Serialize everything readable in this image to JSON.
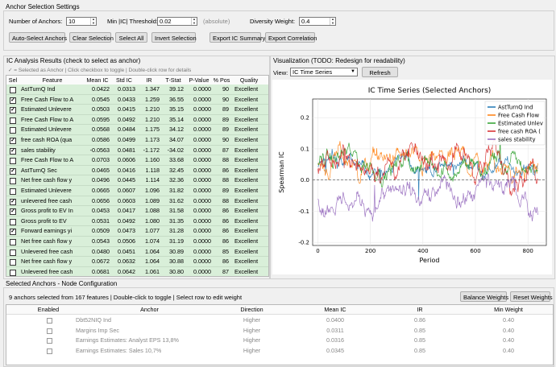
{
  "settings": {
    "title": "Anchor Selection Settings",
    "num_anchors_label": "Number of Anchors:",
    "num_anchors_value": "10",
    "min_ic_label": "Min |IC| Threshold:",
    "min_ic_value": "0.02",
    "min_ic_hint": "(absolute)",
    "diversity_label": "Diversity Weight:",
    "diversity_value": "0.4",
    "buttons": {
      "auto_select": "Auto-Select Anchors",
      "clear": "Clear Selection",
      "select_all": "Select All",
      "invert": "Invert Selection",
      "export_ic": "Export IC Summary",
      "export_corr": "Export Correlation"
    }
  },
  "ic_analysis": {
    "title": "IC Analysis Results (check to select as anchor)",
    "hint": "✓ = Selected as Anchor | Click checkbox to toggle | Double-click row for details",
    "columns": [
      "Sel",
      "Feature",
      "Mean IC",
      "Std IC",
      "IR",
      "T-Stat",
      "P-Value",
      "% Pos",
      "Quality"
    ],
    "rows": [
      {
        "sel": false,
        "feature": "AstTurnQ Ind",
        "mean_ic": "0.0422",
        "std_ic": "0.0313",
        "ir": "1.347",
        "t_stat": "39.12",
        "p_value": "0.0000",
        "pos": "90",
        "quality": "Excellent"
      },
      {
        "sel": true,
        "feature": "Free Cash Flow to A",
        "mean_ic": "0.0545",
        "std_ic": "0.0433",
        "ir": "1.259",
        "t_stat": "36.55",
        "p_value": "0.0000",
        "pos": "90",
        "quality": "Excellent"
      },
      {
        "sel": true,
        "feature": "Estimated Unlevere",
        "mean_ic": "0.0503",
        "std_ic": "0.0415",
        "ir": "1.210",
        "t_stat": "35.15",
        "p_value": "0.0000",
        "pos": "89",
        "quality": "Excellent"
      },
      {
        "sel": false,
        "feature": "Free Cash Flow to A",
        "mean_ic": "0.0595",
        "std_ic": "0.0492",
        "ir": "1.210",
        "t_stat": "35.14",
        "p_value": "0.0000",
        "pos": "89",
        "quality": "Excellent"
      },
      {
        "sel": false,
        "feature": "Estimated Unlevere",
        "mean_ic": "0.0568",
        "std_ic": "0.0484",
        "ir": "1.175",
        "t_stat": "34.12",
        "p_value": "0.0000",
        "pos": "89",
        "quality": "Excellent"
      },
      {
        "sel": true,
        "feature": "free cash ROA (qua",
        "mean_ic": "0.0586",
        "std_ic": "0.0499",
        "ir": "1.173",
        "t_stat": "34.07",
        "p_value": "0.0000",
        "pos": "90",
        "quality": "Excellent"
      },
      {
        "sel": true,
        "feature": "sales stability",
        "mean_ic": "-0.0563",
        "std_ic": "0.0481",
        "ir": "-1.172",
        "t_stat": "-34.02",
        "p_value": "0.0000",
        "pos": "87",
        "quality": "Excellent"
      },
      {
        "sel": false,
        "feature": "Free Cash Flow to A",
        "mean_ic": "0.0703",
        "std_ic": "0.0606",
        "ir": "1.160",
        "t_stat": "33.68",
        "p_value": "0.0000",
        "pos": "88",
        "quality": "Excellent"
      },
      {
        "sel": true,
        "feature": "AstTurnQ Sec",
        "mean_ic": "0.0465",
        "std_ic": "0.0416",
        "ir": "1.118",
        "t_stat": "32.45",
        "p_value": "0.0000",
        "pos": "86",
        "quality": "Excellent"
      },
      {
        "sel": false,
        "feature": "Net free cash flow y",
        "mean_ic": "0.0496",
        "std_ic": "0.0445",
        "ir": "1.114",
        "t_stat": "32.36",
        "p_value": "0.0000",
        "pos": "88",
        "quality": "Excellent"
      },
      {
        "sel": false,
        "feature": "Estimated Unlevere",
        "mean_ic": "0.0665",
        "std_ic": "0.0607",
        "ir": "1.096",
        "t_stat": "31.82",
        "p_value": "0.0000",
        "pos": "89",
        "quality": "Excellent"
      },
      {
        "sel": true,
        "feature": "unlevered free cash",
        "mean_ic": "0.0656",
        "std_ic": "0.0603",
        "ir": "1.089",
        "t_stat": "31.62",
        "p_value": "0.0000",
        "pos": "88",
        "quality": "Excellent"
      },
      {
        "sel": true,
        "feature": "Gross profit to EV In",
        "mean_ic": "0.0453",
        "std_ic": "0.0417",
        "ir": "1.088",
        "t_stat": "31.58",
        "p_value": "0.0000",
        "pos": "86",
        "quality": "Excellent"
      },
      {
        "sel": false,
        "feature": "Gross profit to EV",
        "mean_ic": "0.0531",
        "std_ic": "0.0492",
        "ir": "1.080",
        "t_stat": "31.35",
        "p_value": "0.0000",
        "pos": "86",
        "quality": "Excellent"
      },
      {
        "sel": true,
        "feature": "Forward earnings yi",
        "mean_ic": "0.0509",
        "std_ic": "0.0473",
        "ir": "1.077",
        "t_stat": "31.28",
        "p_value": "0.0000",
        "pos": "86",
        "quality": "Excellent"
      },
      {
        "sel": false,
        "feature": "Net free cash flow y",
        "mean_ic": "0.0543",
        "std_ic": "0.0506",
        "ir": "1.074",
        "t_stat": "31.19",
        "p_value": "0.0000",
        "pos": "86",
        "quality": "Excellent"
      },
      {
        "sel": false,
        "feature": "Unlevered free cash",
        "mean_ic": "0.0480",
        "std_ic": "0.0451",
        "ir": "1.064",
        "t_stat": "30.89",
        "p_value": "0.0000",
        "pos": "85",
        "quality": "Excellent"
      },
      {
        "sel": false,
        "feature": "Net free cash flow y",
        "mean_ic": "0.0672",
        "std_ic": "0.0632",
        "ir": "1.064",
        "t_stat": "30.88",
        "p_value": "0.0000",
        "pos": "86",
        "quality": "Excellent"
      },
      {
        "sel": false,
        "feature": "Unlevered free cash",
        "mean_ic": "0.0681",
        "std_ic": "0.0642",
        "ir": "1.061",
        "t_stat": "30.80",
        "p_value": "0.0000",
        "pos": "87",
        "quality": "Excellent"
      }
    ]
  },
  "visualization": {
    "title": "Visualization (TODO: Redesign for readability)",
    "view_label": "View:",
    "view_value": "IC Time Series",
    "refresh_label": "Refresh"
  },
  "chart_data": {
    "type": "line",
    "title": "IC Time Series (Selected Anchors)",
    "xlabel": "Period",
    "ylabel": "Spearman IC",
    "xlim": [
      -20,
      870
    ],
    "ylim": [
      -0.21,
      0.26
    ],
    "xticks": [
      "0",
      "200",
      "400",
      "600",
      "800"
    ],
    "yticks": [
      "-0.2",
      "-0.1",
      "0.0",
      "0.1",
      "0.2"
    ],
    "grid": true,
    "legend_position": "top-right",
    "zero_line": true,
    "series": [
      {
        "name": "AstTurnQ Ind",
        "color": "#1f77b4",
        "mean": 0.042,
        "amp": 0.028
      },
      {
        "name": "Free Cash Flow",
        "color": "#ff7f0e",
        "mean": 0.054,
        "amp": 0.04
      },
      {
        "name": "Estimated Unlev",
        "color": "#2ca02c",
        "mean": 0.05,
        "amp": 0.038
      },
      {
        "name": "free cash ROA (",
        "color": "#d62728",
        "mean": 0.058,
        "amp": 0.045
      },
      {
        "name": "sales stability",
        "color": "#9467bd",
        "mean": -0.056,
        "amp": 0.045
      }
    ],
    "n_points": 840
  },
  "anchors": {
    "title": "Selected Anchors - Node Configuration",
    "summary": "9 anchors selected from 167 features | Double-click to toggle | Select row to edit weight",
    "balance_label": "Balance Weights",
    "reset_label": "Reset Weights",
    "columns": [
      "Enabled",
      "Anchor",
      "Direction",
      "Mean IC",
      "IR",
      "Min Weight"
    ],
    "rows": [
      {
        "anchor": "Dbt52NIQ Ind",
        "direction": "Higher",
        "mean_ic": "0.0400",
        "ir": "0.86",
        "min_weight": "0.40"
      },
      {
        "anchor": "Margins Imp Sec",
        "direction": "Higher",
        "mean_ic": "0.0311",
        "ir": "0.85",
        "min_weight": "0.40"
      },
      {
        "anchor": "Earnings Estimates: Analyst EPS 13,8%",
        "direction": "Higher",
        "mean_ic": "0.0316",
        "ir": "0.85",
        "min_weight": "0.40"
      },
      {
        "anchor": "Earnings Estimates: Sales 10,7%",
        "direction": "Higher",
        "mean_ic": "0.0345",
        "ir": "0.85",
        "min_weight": "0.40"
      }
    ]
  }
}
